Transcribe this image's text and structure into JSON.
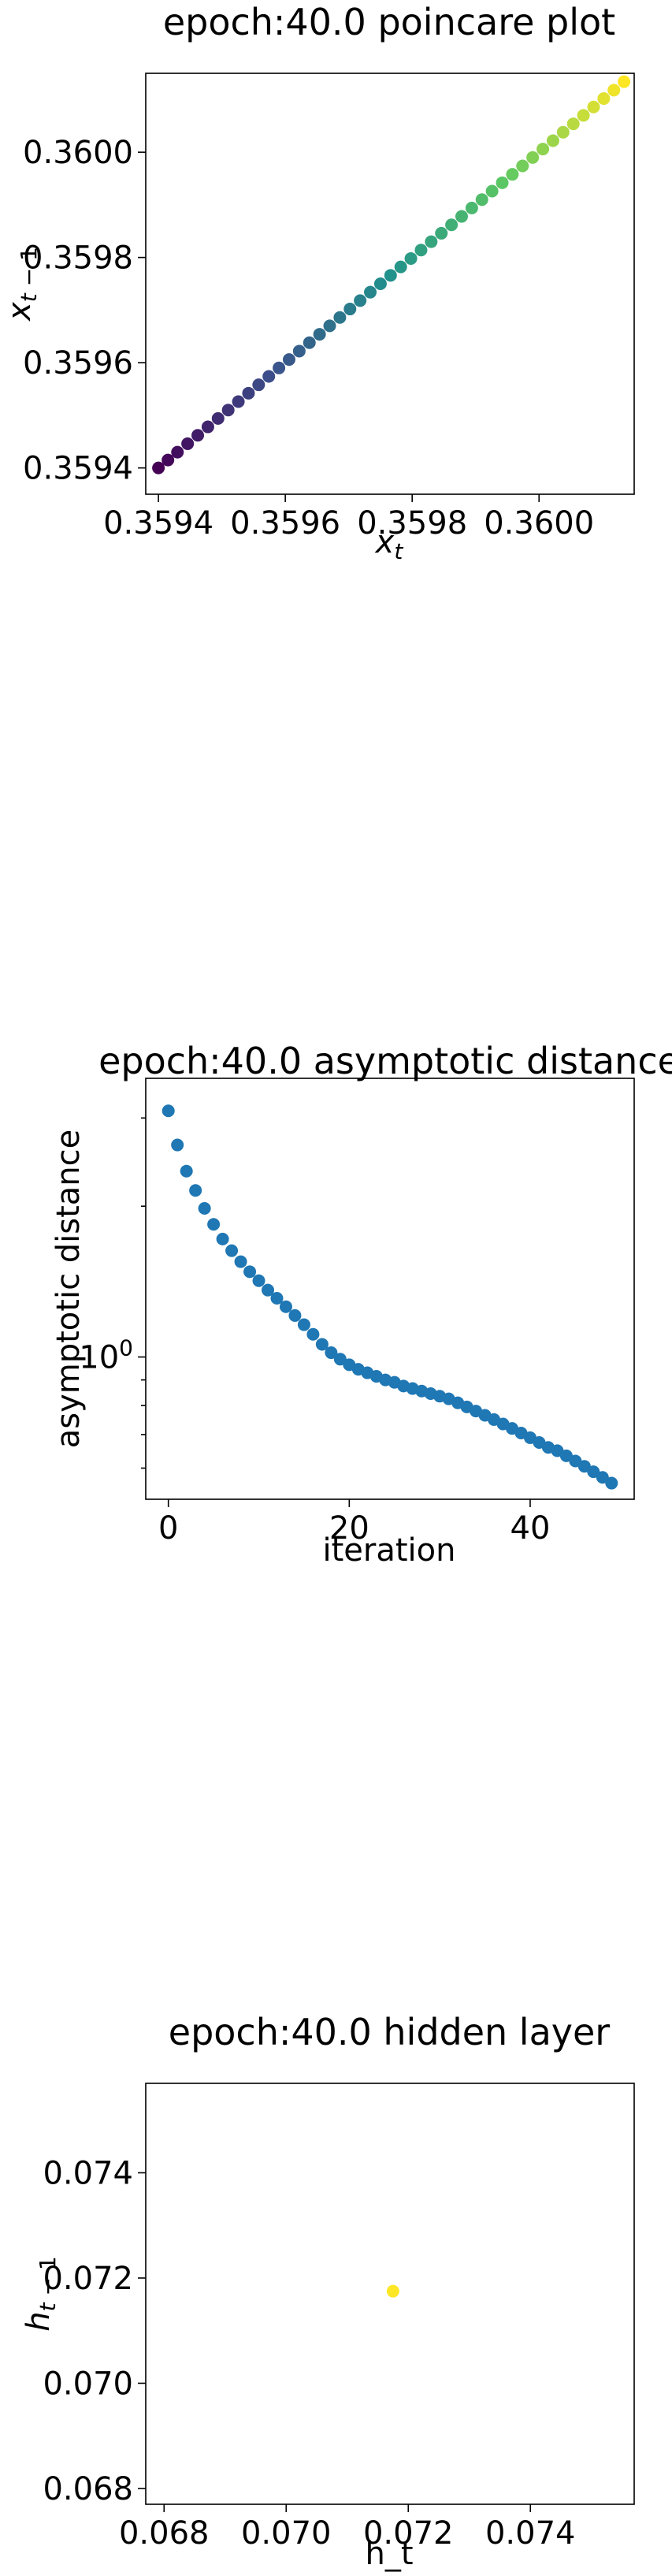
{
  "chart_data": [
    {
      "type": "scatter",
      "title": "epoch:40.0 poincare plot",
      "xlabel": "x_t",
      "ylabel": "x_{t-1}",
      "xlim": [
        0.35938,
        0.36015
      ],
      "ylim": [
        0.35935,
        0.36015
      ],
      "xticks": [
        0.3594,
        0.3596,
        0.3598,
        0.36
      ],
      "xtick_labels": [
        "0.3594",
        "0.3596",
        "0.3598",
        "0.3600"
      ],
      "yticks": [
        0.3594,
        0.3596,
        0.3598,
        0.36
      ],
      "ytick_labels": [
        "0.3594",
        "0.3596",
        "0.3598",
        "0.3600"
      ],
      "colormap": "viridis",
      "points": [
        [
          0.3594,
          0.3594
        ],
        [
          0.359415,
          0.359415
        ],
        [
          0.35943,
          0.35943
        ],
        [
          0.359446,
          0.359446
        ],
        [
          0.359462,
          0.359462
        ],
        [
          0.359478,
          0.359478
        ],
        [
          0.359494,
          0.359494
        ],
        [
          0.35951,
          0.35951
        ],
        [
          0.359526,
          0.359526
        ],
        [
          0.359542,
          0.359542
        ],
        [
          0.359558,
          0.359558
        ],
        [
          0.359574,
          0.359574
        ],
        [
          0.35959,
          0.35959
        ],
        [
          0.359606,
          0.359606
        ],
        [
          0.359622,
          0.359622
        ],
        [
          0.359638,
          0.359638
        ],
        [
          0.359654,
          0.359654
        ],
        [
          0.35967,
          0.35967
        ],
        [
          0.359686,
          0.359686
        ],
        [
          0.359702,
          0.359702
        ],
        [
          0.359718,
          0.359718
        ],
        [
          0.359734,
          0.359734
        ],
        [
          0.35975,
          0.35975
        ],
        [
          0.359766,
          0.359766
        ],
        [
          0.359782,
          0.359782
        ],
        [
          0.359798,
          0.359798
        ],
        [
          0.359814,
          0.359814
        ],
        [
          0.35983,
          0.35983
        ],
        [
          0.359846,
          0.359846
        ],
        [
          0.359862,
          0.359862
        ],
        [
          0.359878,
          0.359878
        ],
        [
          0.359894,
          0.359894
        ],
        [
          0.35991,
          0.35991
        ],
        [
          0.359926,
          0.359926
        ],
        [
          0.359942,
          0.359942
        ],
        [
          0.359958,
          0.359958
        ],
        [
          0.359974,
          0.359974
        ],
        [
          0.35999,
          0.35999
        ],
        [
          0.360006,
          0.360006
        ],
        [
          0.360022,
          0.360022
        ],
        [
          0.360038,
          0.360038
        ],
        [
          0.360054,
          0.360054
        ],
        [
          0.36007,
          0.36007
        ],
        [
          0.360086,
          0.360086
        ],
        [
          0.360102,
          0.360102
        ],
        [
          0.360118,
          0.360118
        ],
        [
          0.360134,
          0.360134
        ]
      ]
    },
    {
      "type": "scatter",
      "title": "epoch:40.0 asymptotic distance",
      "xlabel": "iteration",
      "ylabel": "asymptotic distance",
      "yscale": "log",
      "xlim": [
        -2.5,
        51.5
      ],
      "ylim": [
        0.52,
        3.6
      ],
      "xticks": [
        0,
        20,
        40
      ],
      "xtick_labels": [
        "0",
        "20",
        "40"
      ],
      "ytick_major": [
        1.0
      ],
      "ytick_major_labels": [
        "10^0"
      ],
      "ytick_minor": [
        0.6,
        0.7,
        0.8,
        0.9,
        2,
        3
      ],
      "color": "#1f77b4",
      "x": [
        0,
        1,
        2,
        3,
        4,
        5,
        6,
        7,
        8,
        9,
        10,
        11,
        12,
        13,
        14,
        15,
        16,
        17,
        18,
        19,
        20,
        21,
        22,
        23,
        24,
        25,
        26,
        27,
        28,
        29,
        30,
        31,
        32,
        33,
        34,
        35,
        36,
        37,
        38,
        39,
        40,
        41,
        42,
        43,
        44,
        45,
        46,
        47,
        48,
        49
      ],
      "y": [
        3.1,
        2.65,
        2.35,
        2.15,
        1.98,
        1.84,
        1.72,
        1.63,
        1.55,
        1.48,
        1.42,
        1.36,
        1.31,
        1.26,
        1.21,
        1.16,
        1.11,
        1.06,
        1.02,
        0.99,
        0.965,
        0.945,
        0.93,
        0.915,
        0.9,
        0.89,
        0.875,
        0.865,
        0.855,
        0.845,
        0.835,
        0.825,
        0.81,
        0.795,
        0.78,
        0.765,
        0.75,
        0.735,
        0.72,
        0.705,
        0.69,
        0.675,
        0.66,
        0.65,
        0.635,
        0.62,
        0.605,
        0.59,
        0.575,
        0.56
      ]
    },
    {
      "type": "scatter",
      "title": "epoch:40.0 hidden layer",
      "xlabel": "h_t",
      "ylabel": "h_{t-1}",
      "xlim": [
        0.0677,
        0.0757
      ],
      "ylim": [
        0.0677,
        0.0757
      ],
      "xticks": [
        0.068,
        0.07,
        0.072,
        0.074
      ],
      "xtick_labels": [
        "0.068",
        "0.070",
        "0.072",
        "0.074"
      ],
      "yticks": [
        0.068,
        0.07,
        0.072,
        0.074
      ],
      "ytick_labels": [
        "0.068",
        "0.070",
        "0.072",
        "0.074"
      ],
      "color": "#fde725",
      "points": [
        [
          0.07175,
          0.07175
        ]
      ]
    }
  ]
}
